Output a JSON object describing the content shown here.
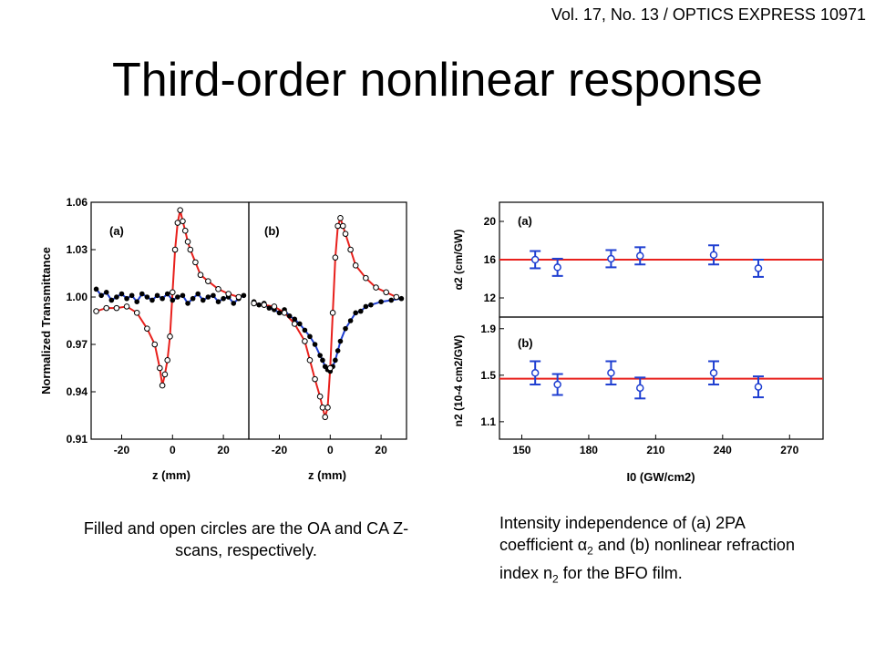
{
  "header": {
    "citation": "Vol. 17,  No. 13 / OPTICS EXPRESS  10971",
    "title": "Third-order nonlinear response"
  },
  "captions": {
    "left": "Filled and open circles are the OA and CA Z-scans, respectively.",
    "right_p1": "Intensity independence of (a) 2PA coefficient α",
    "right_sub1": "2",
    "right_p2": " and (b) nonlinear refraction index n",
    "right_sub2": "2",
    "right_p3": " for the BFO film."
  },
  "chart_data": [
    {
      "type": "scatter",
      "panel": "(a)",
      "xlabel": "z (mm)",
      "ylabel": "Normalized Transmittance",
      "xlim": [
        -32,
        30
      ],
      "ylim": [
        0.91,
        1.06
      ],
      "xticks": [
        "-20",
        "0",
        "20"
      ],
      "yticks": [
        "0.91",
        "0.94",
        "0.97",
        "1.00",
        "1.03",
        "1.06"
      ],
      "colors": {
        "fit_ca": "#e8201c",
        "fit_oa": "#1f3fd1"
      },
      "series": [
        {
          "x": [
            -30,
            -26,
            -22,
            -18,
            -14,
            -10,
            -7,
            -5,
            -4,
            -3,
            -2,
            -1,
            0,
            1,
            2,
            3,
            4,
            5,
            6,
            7,
            9,
            11,
            14,
            18,
            22,
            26
          ],
          "y": [
            0.991,
            0.993,
            0.993,
            0.994,
            0.99,
            0.98,
            0.97,
            0.955,
            0.944,
            0.951,
            0.96,
            0.975,
            1.003,
            1.03,
            1.047,
            1.055,
            1.048,
            1.042,
            1.035,
            1.03,
            1.022,
            1.014,
            1.01,
            1.005,
            1.002,
            1.0
          ]
        },
        {
          "x": [
            -30,
            -28,
            -26,
            -24,
            -22,
            -20,
            -18,
            -16,
            -14,
            -12,
            -10,
            -8,
            -6,
            -4,
            -2,
            0,
            2,
            4,
            6,
            8,
            10,
            12,
            14,
            16,
            18,
            20,
            22,
            24,
            26,
            28
          ],
          "y": [
            1.005,
            1.001,
            1.003,
            0.998,
            1.0,
            1.002,
            0.999,
            1.001,
            0.997,
            1.002,
            1.0,
            0.998,
            1.001,
            0.999,
            1.002,
            0.998,
            1.0,
            1.001,
            0.996,
            0.999,
            1.002,
            0.998,
            1.0,
            1.001,
            0.997,
            0.999,
            1.0,
            0.996,
            0.999,
            1.001
          ]
        }
      ]
    },
    {
      "type": "scatter",
      "panel": "(b)",
      "xlabel": "z (mm)",
      "xlim": [
        -32,
        30
      ],
      "ylim": [
        0.91,
        1.06
      ],
      "xticks": [
        "-20",
        "0",
        "20"
      ],
      "colors": {
        "fit_ca": "#e8201c",
        "fit_oa": "#1f3fd1"
      },
      "series": [
        {
          "x": [
            -30,
            -26,
            -22,
            -18,
            -14,
            -10,
            -8,
            -6,
            -4,
            -3,
            -2,
            -1,
            0,
            1,
            2,
            3,
            4,
            5,
            6,
            8,
            10,
            14,
            18,
            22,
            26
          ],
          "y": [
            0.996,
            0.995,
            0.994,
            0.99,
            0.983,
            0.972,
            0.96,
            0.948,
            0.937,
            0.93,
            0.924,
            0.93,
            0.955,
            0.99,
            1.025,
            1.045,
            1.05,
            1.045,
            1.04,
            1.03,
            1.02,
            1.012,
            1.006,
            1.003,
            1.0
          ]
        },
        {
          "x": [
            -30,
            -28,
            -26,
            -24,
            -22,
            -20,
            -18,
            -16,
            -14,
            -12,
            -10,
            -8,
            -6,
            -4,
            -3,
            -2,
            -1,
            0,
            1,
            2,
            3,
            4,
            6,
            8,
            10,
            12,
            14,
            16,
            20,
            24,
            28
          ],
          "y": [
            0.997,
            0.995,
            0.996,
            0.993,
            0.992,
            0.99,
            0.992,
            0.988,
            0.986,
            0.983,
            0.979,
            0.975,
            0.97,
            0.963,
            0.96,
            0.956,
            0.954,
            0.953,
            0.956,
            0.96,
            0.966,
            0.972,
            0.98,
            0.985,
            0.99,
            0.991,
            0.994,
            0.995,
            0.997,
            0.998,
            0.999
          ]
        }
      ]
    },
    {
      "type": "scatter",
      "panel": "(a)",
      "ylabel": "α2 (cm/GW)",
      "ylim": [
        10,
        22
      ],
      "yticks": [
        "12",
        "16",
        "20"
      ],
      "fit_level": 16,
      "x": [
        156,
        166,
        190,
        203,
        236,
        256
      ],
      "values": [
        16.0,
        15.2,
        16.1,
        16.4,
        16.5,
        15.1
      ],
      "errors": [
        0.9,
        0.9,
        0.9,
        0.9,
        1.0,
        0.9
      ],
      "colors": {
        "fit": "#e8201c",
        "points": "#1f3fd1"
      }
    },
    {
      "type": "scatter",
      "panel": "(b)",
      "ylabel": "n2 (10-4 cm2/GW)",
      "xlabel": "I0 (GW/cm2)",
      "xlim": [
        140,
        285
      ],
      "xticks": [
        "150",
        "180",
        "210",
        "240",
        "270"
      ],
      "ylim": [
        0.95,
        2.0
      ],
      "yticks": [
        "1.1",
        "1.5",
        "1.9"
      ],
      "fit_level": 1.47,
      "x": [
        156,
        166,
        190,
        203,
        236,
        256
      ],
      "values": [
        1.52,
        1.42,
        1.52,
        1.39,
        1.52,
        1.4
      ],
      "errors": [
        0.1,
        0.09,
        0.1,
        0.09,
        0.1,
        0.09
      ],
      "colors": {
        "fit": "#e8201c",
        "points": "#1f3fd1"
      }
    }
  ]
}
